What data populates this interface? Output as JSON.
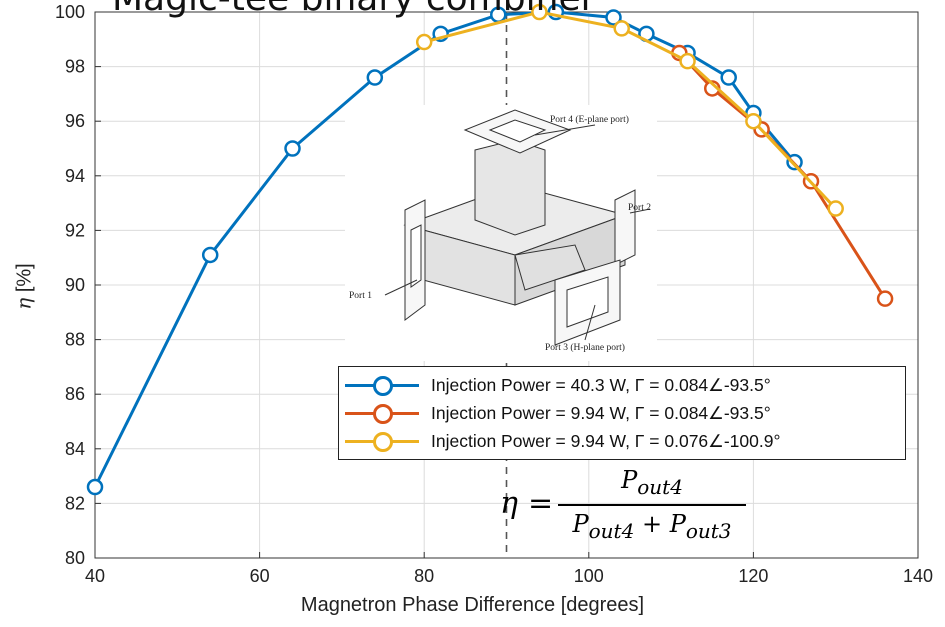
{
  "chart_data": {
    "type": "line",
    "title": "Magic-tee binary combiner",
    "xlabel": "Magnetron Phase Difference [degrees]",
    "ylabel": "η [%]",
    "xlim": [
      40,
      140
    ],
    "ylim": [
      80,
      100
    ],
    "xticks": [
      "40",
      "60",
      "80",
      "100",
      "120",
      "140"
    ],
    "yticks": [
      "80",
      "82",
      "84",
      "86",
      "88",
      "90",
      "92",
      "94",
      "96",
      "98",
      "100"
    ],
    "grid": true,
    "legend_position": "lower-right (inside)",
    "vertical_reference_line": {
      "x": 90,
      "style": "dashed"
    },
    "series": [
      {
        "name": "Injection Power = 40.3 W, Γ = 0.084∠-93.5°",
        "color": "#0072BD",
        "x": [
          40,
          54,
          64,
          74,
          82,
          89,
          96,
          103,
          107,
          112,
          117,
          120,
          125
        ],
        "y": [
          82.6,
          91.1,
          95.0,
          97.6,
          99.2,
          99.9,
          100.0,
          99.8,
          99.2,
          98.5,
          97.6,
          96.3,
          94.5
        ]
      },
      {
        "name": "Injection Power = 9.94 W, Γ = 0.084∠-93.5°",
        "color": "#D95319",
        "x": [
          111,
          115,
          121,
          127,
          136
        ],
        "y": [
          98.5,
          97.2,
          95.7,
          93.8,
          89.5
        ]
      },
      {
        "name": "Injection Power = 9.94 W, Γ = 0.076∠-100.9°",
        "color": "#EDB120",
        "x": [
          80,
          94,
          104,
          112,
          120,
          130
        ],
        "y": [
          98.9,
          100.0,
          99.4,
          98.2,
          96.0,
          92.8
        ]
      }
    ],
    "annotations": {
      "formula": {
        "lhs": "η",
        "numerator": "P_out4",
        "denominator": "P_out4 + P_out3"
      },
      "inset_labels": [
        "Port 4 (E-plane port)",
        "Port 2",
        "Port 1",
        "Port 3 (H-plane port)"
      ]
    }
  },
  "formula_text": {
    "eta": "η",
    "equals": "=",
    "num_main": "P",
    "num_sub": "out4",
    "den_main1": "P",
    "den_sub1": "out4",
    "den_plus": " + ",
    "den_main2": "P",
    "den_sub2": "out3"
  },
  "ylabel_parts": {
    "symbol": "η",
    "unit": " [%]"
  },
  "colors": {
    "series1": "#0072BD",
    "series2": "#D95319",
    "series3": "#EDB120",
    "grid": "#dcdcdc"
  }
}
